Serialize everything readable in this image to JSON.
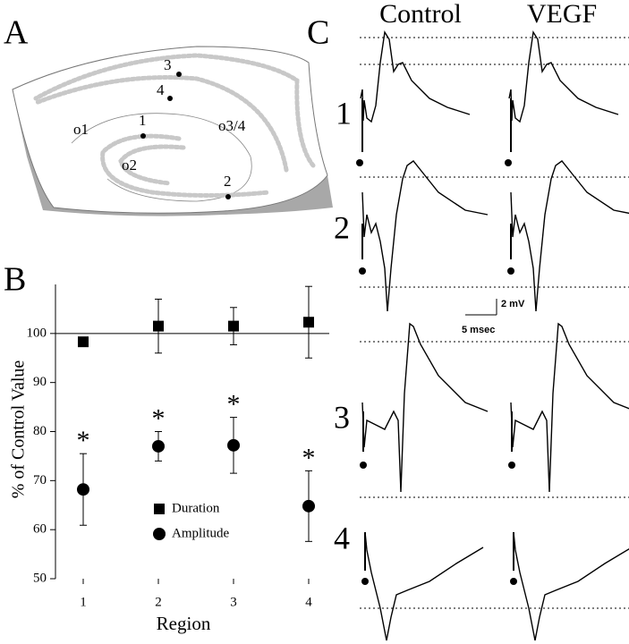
{
  "panels": {
    "a": "A",
    "b": "B",
    "c": "C"
  },
  "diagram": {
    "sites": [
      "1",
      "2",
      "3",
      "4"
    ],
    "regions": [
      "o1",
      "o2",
      "o3/4"
    ]
  },
  "traces": {
    "conditions": [
      "Control",
      "VEGF"
    ],
    "rows": [
      "1",
      "2",
      "3",
      "4"
    ],
    "scale_y": "2 mV",
    "scale_x": "5 msec"
  },
  "chart_data": {
    "type": "scatter",
    "categories": [
      "1",
      "2",
      "3",
      "4"
    ],
    "xlabel": "Region",
    "ylabel": "% of Control Value",
    "ylim": [
      50,
      110
    ],
    "yticks": [
      50,
      60,
      70,
      80,
      90,
      100
    ],
    "reference_line": 100,
    "legend_position": "lower center",
    "series": [
      {
        "name": "Duration",
        "marker": "square",
        "color": "#000000",
        "values": [
          98.3,
          101.5,
          101.5,
          102.3
        ],
        "errors": [
          0,
          5.5,
          3.8,
          7.3
        ]
      },
      {
        "name": "Amplitude",
        "marker": "circle",
        "color": "#000000",
        "values": [
          68.2,
          77,
          77.2,
          64.8
        ],
        "errors": [
          7.3,
          3,
          5.7,
          7.2
        ]
      }
    ],
    "significance": [
      "*",
      "*",
      "*",
      "*"
    ]
  }
}
